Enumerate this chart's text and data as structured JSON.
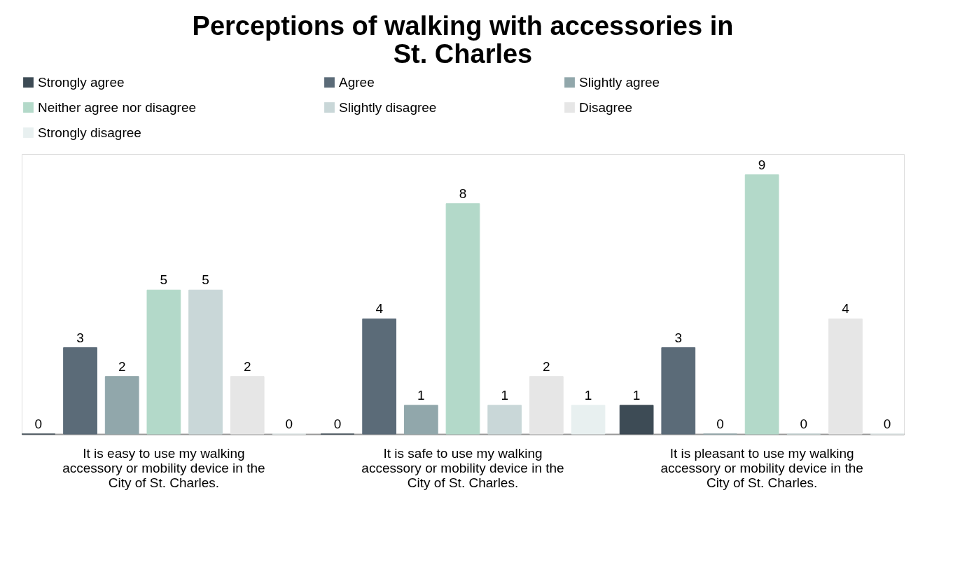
{
  "chart_data": {
    "type": "bar",
    "title": "Perceptions of walking with accessories in St. Charles",
    "categories": [
      "It is easy to use my walking accessory or mobility device in the City of St. Charles.",
      "It is safe to use my walking accessory or mobility device in the City of St. Charles.",
      "It is pleasant to use my walking accessory or mobility device in the City of St. Charles."
    ],
    "series": [
      {
        "name": "Strongly agree",
        "color": "#3d4b55",
        "values": [
          0,
          0,
          1
        ]
      },
      {
        "name": "Agree",
        "color": "#5b6b78",
        "values": [
          3,
          4,
          3
        ]
      },
      {
        "name": "Slightly agree",
        "color": "#91a7ab",
        "values": [
          2,
          1,
          0
        ]
      },
      {
        "name": "Neither agree nor disagree",
        "color": "#b3d9c9",
        "values": [
          5,
          8,
          9
        ]
      },
      {
        "name": "Slightly disagree",
        "color": "#c9d7d8",
        "values": [
          5,
          1,
          0
        ]
      },
      {
        "name": "Disagree",
        "color": "#e6e6e6",
        "values": [
          2,
          2,
          4
        ]
      },
      {
        "name": "Strongly disagree",
        "color": "#e8f0f0",
        "values": [
          0,
          1,
          0
        ]
      }
    ],
    "data_labels": true,
    "legend": "top",
    "grid": false,
    "tick_labels": "x"
  }
}
